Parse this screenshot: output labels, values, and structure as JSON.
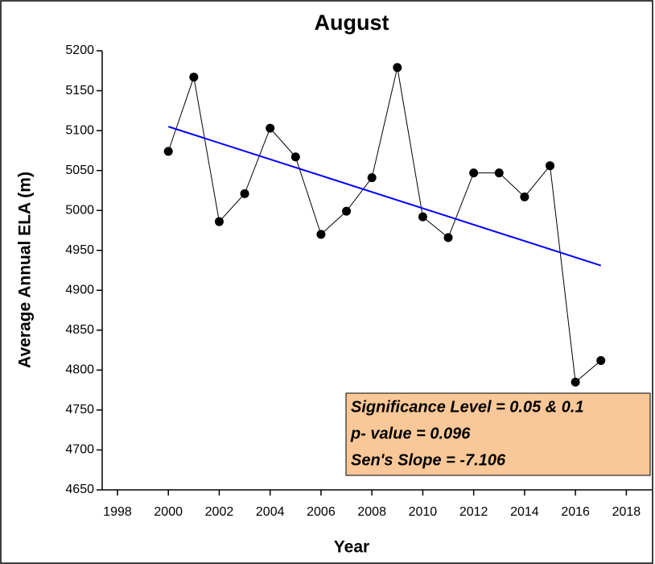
{
  "chart_data": {
    "type": "line",
    "title": "August",
    "xlabel": "Year",
    "ylabel": "Average Annual ELA (m)",
    "x": [
      2000,
      2001,
      2002,
      2003,
      2004,
      2005,
      2006,
      2007,
      2008,
      2009,
      2010,
      2011,
      2012,
      2013,
      2014,
      2015,
      2016,
      2017
    ],
    "values": [
      5074,
      5167,
      4986,
      5021,
      5103,
      5067,
      4970,
      4999,
      5041,
      5179,
      4992,
      4966,
      5047,
      5047,
      5017,
      5056,
      4785,
      4812
    ],
    "color": "#000000",
    "trend": {
      "x": [
        2000,
        2017
      ],
      "values": [
        5105,
        4931
      ],
      "color": "#0000ff"
    },
    "xlim": [
      1997.4,
      2019.0
    ],
    "xticks": [
      1998,
      2000,
      2002,
      2004,
      2006,
      2008,
      2010,
      2012,
      2014,
      2016,
      2018
    ],
    "ylim": [
      4650,
      5200
    ],
    "yticks": [
      4650,
      4700,
      4750,
      4800,
      4850,
      4900,
      4950,
      5000,
      5050,
      5100,
      5150,
      5200
    ],
    "annotations": [
      "Significance Level = 0.05 & 0.1",
      "p- value = 0.096",
      "Sen's Slope = -7.106"
    ],
    "annotation_color": "#fac898"
  }
}
